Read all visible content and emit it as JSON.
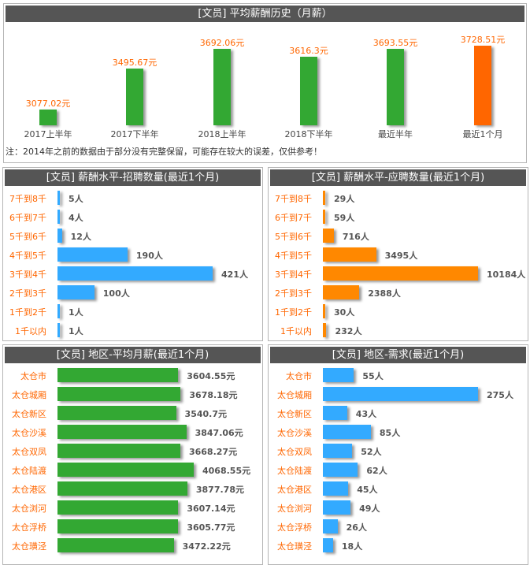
{
  "chart_data": [
    {
      "type": "bar",
      "title": "[文员] 平均薪酬历史（月薪）",
      "categories": [
        "2017上半年",
        "2017下半年",
        "2018上半年",
        "2018下半年",
        "最近半年",
        "最近1个月"
      ],
      "values": [
        3077.02,
        3495.67,
        3692.06,
        3616.3,
        3693.55,
        3728.51
      ],
      "data_labels": [
        "3077.02元",
        "3495.67元",
        "3692.06元",
        "3616.3元",
        "3693.55元",
        "3728.51元"
      ],
      "colors": [
        "#33a833",
        "#33a833",
        "#33a833",
        "#33a833",
        "#33a833",
        "#ff6600"
      ],
      "note": "注：2014年之前的数据由于部分没有完整保留，可能存在较大的误差，仅供参考！"
    },
    {
      "type": "bar",
      "orientation": "horizontal",
      "title": "[文员] 薪酬水平-招聘数量(最近1个月)",
      "categories": [
        "7千到8千",
        "6千到7千",
        "5千到6千",
        "4千到5千",
        "3千到4千",
        "2千到3千",
        "1千到2千",
        "1千以内"
      ],
      "values": [
        5,
        4,
        12,
        190,
        421,
        100,
        1,
        1
      ],
      "data_labels": [
        "5人",
        "4人",
        "12人",
        "190人",
        "421人",
        "100人",
        "1人",
        "1人"
      ],
      "color": "#33aaff"
    },
    {
      "type": "bar",
      "orientation": "horizontal",
      "title": "[文员] 薪酬水平-应聘数量(最近1个月)",
      "categories": [
        "7千到8千",
        "6千到7千",
        "5千到6千",
        "4千到5千",
        "3千到4千",
        "2千到3千",
        "1千到2千",
        "1千以内"
      ],
      "values": [
        29,
        59,
        716,
        3495,
        10184,
        2388,
        30,
        232
      ],
      "data_labels": [
        "29人",
        "59人",
        "716人",
        "3495人",
        "10184人",
        "2388人",
        "30人",
        "232人"
      ],
      "color": "#ff8800"
    },
    {
      "type": "bar",
      "orientation": "horizontal",
      "title": "[文员] 地区-平均月薪(最近1个月)",
      "categories": [
        "太仓市",
        "太仓城厢",
        "太仓新区",
        "太仓沙溪",
        "太仓双凤",
        "太仓陆渡",
        "太仓港区",
        "太仓浏河",
        "太仓浮桥",
        "太仓璜泾"
      ],
      "values": [
        3604.55,
        3678.18,
        3540.7,
        3847.06,
        3668.27,
        4068.55,
        3877.78,
        3607.14,
        3605.77,
        3472.22
      ],
      "data_labels": [
        "3604.55元",
        "3678.18元",
        "3540.7元",
        "3847.06元",
        "3668.27元",
        "4068.55元",
        "3877.78元",
        "3607.14元",
        "3605.77元",
        "3472.22元"
      ],
      "color": "#33a833"
    },
    {
      "type": "bar",
      "orientation": "horizontal",
      "title": "[文员] 地区-需求(最近1个月)",
      "categories": [
        "太仓市",
        "太仓城厢",
        "太仓新区",
        "太仓沙溪",
        "太仓双凤",
        "太仓陆渡",
        "太仓港区",
        "太仓浏河",
        "太仓浮桥",
        "太仓璜泾"
      ],
      "values": [
        55,
        275,
        43,
        85,
        52,
        62,
        45,
        49,
        26,
        18
      ],
      "data_labels": [
        "55人",
        "275人",
        "43人",
        "85人",
        "52人",
        "62人",
        "45人",
        "49人",
        "26人",
        "18人"
      ],
      "color": "#33aaff"
    }
  ]
}
